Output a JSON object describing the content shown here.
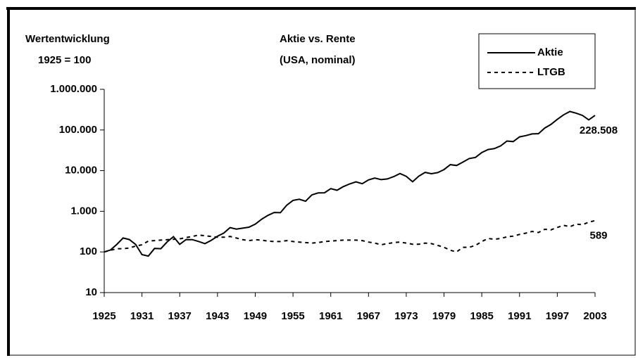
{
  "chart_data": {
    "type": "line",
    "title": "Aktie vs. Rente",
    "subtitle": "(USA, nominal)",
    "y_label": "Wertentwicklung",
    "y_label_note": "1925 = 100",
    "log_scale": true,
    "legend": "top-right",
    "x": [
      1925,
      1926,
      1927,
      1928,
      1929,
      1930,
      1931,
      1932,
      1933,
      1934,
      1935,
      1936,
      1937,
      1938,
      1939,
      1940,
      1941,
      1942,
      1943,
      1944,
      1945,
      1946,
      1947,
      1948,
      1949,
      1950,
      1951,
      1952,
      1953,
      1954,
      1955,
      1956,
      1957,
      1958,
      1959,
      1960,
      1961,
      1962,
      1963,
      1964,
      1965,
      1966,
      1967,
      1968,
      1969,
      1970,
      1971,
      1972,
      1973,
      1974,
      1975,
      1976,
      1977,
      1978,
      1979,
      1980,
      1981,
      1982,
      1983,
      1984,
      1985,
      1986,
      1987,
      1988,
      1989,
      1990,
      1991,
      1992,
      1993,
      1994,
      1995,
      1996,
      1997,
      1998,
      1999,
      2000,
      2001,
      2002,
      2003
    ],
    "xlim": [
      1925,
      2003
    ],
    "xticks": [
      1925,
      1931,
      1937,
      1943,
      1949,
      1955,
      1961,
      1967,
      1973,
      1979,
      1985,
      1991,
      1997,
      2003
    ],
    "ylim": [
      10,
      1000000
    ],
    "yticks": [
      10,
      100,
      {
        "value": 1000,
        "label": "1.000"
      },
      {
        "value": 10000,
        "label": "10.000"
      },
      {
        "value": 100000,
        "label": "100.000"
      },
      {
        "value": 1000000,
        "label": "1.000.000"
      }
    ],
    "series": [
      {
        "name": "Aktie",
        "color": "#000000",
        "dash": "solid",
        "values": [
          100,
          112,
          153,
          220,
          202,
          152,
          86,
          79,
          122,
          120,
          177,
          237,
          154,
          202,
          201,
          181,
          160,
          193,
          243,
          291,
          397,
          365,
          385,
          407,
          483,
          636,
          789,
          934,
          924,
          1411,
          1856,
          1978,
          1765,
          2530,
          2833,
          2846,
          3611,
          3296,
          4048,
          4714,
          5301,
          4768,
          5910,
          6564,
          6006,
          6246,
          7140,
          8494,
          7249,
          5331,
          7315,
          9058,
          8407,
          8959,
          10611,
          14051,
          13362,
          16222,
          19874,
          21119,
          27911,
          33067,
          34796,
          40645,
          53445,
          51750,
          67559,
          72741,
          80008,
          81054,
          111392,
          137095,
          182833,
          235089,
          284563,
          258652,
          227913,
          177534,
          228508
        ],
        "value_labels": [
          null,
          null,
          null,
          null,
          null,
          null,
          null,
          null,
          null,
          null,
          null,
          null,
          null,
          null,
          null,
          null,
          null,
          null,
          null,
          null,
          null,
          null,
          null,
          null,
          null,
          null,
          null,
          null,
          null,
          null,
          null,
          null,
          null,
          null,
          null,
          null,
          null,
          null,
          null,
          null,
          null,
          null,
          null,
          null,
          null,
          null,
          null,
          null,
          null,
          null,
          null,
          null,
          null,
          null,
          null,
          null,
          null,
          null,
          null,
          null,
          null,
          null,
          null,
          null,
          null,
          null,
          null,
          null,
          null,
          null,
          null,
          null,
          null,
          null,
          null,
          null,
          null,
          null,
          "228.508"
        ]
      },
      {
        "name": "LTGB",
        "color": "#000000",
        "dash": "dashed",
        "values": [
          100,
          110,
          120,
          120,
          125,
          140,
          150,
          185,
          190,
          195,
          200,
          205,
          210,
          225,
          240,
          260,
          250,
          240,
          230,
          230,
          240,
          220,
          200,
          190,
          200,
          195,
          185,
          180,
          180,
          190,
          180,
          175,
          170,
          165,
          170,
          180,
          185,
          190,
          195,
          195,
          195,
          190,
          175,
          165,
          150,
          160,
          170,
          175,
          165,
          155,
          155,
          165,
          160,
          145,
          130,
          110,
          100,
          130,
          130,
          145,
          180,
          215,
          205,
          215,
          235,
          245,
          270,
          290,
          320,
          300,
          360,
          350,
          400,
          450,
          420,
          480,
          470,
          540,
          589
        ],
        "value_labels": [
          null,
          null,
          null,
          null,
          null,
          null,
          null,
          null,
          null,
          null,
          null,
          null,
          null,
          null,
          null,
          null,
          null,
          null,
          null,
          null,
          null,
          null,
          null,
          null,
          null,
          null,
          null,
          null,
          null,
          null,
          null,
          null,
          null,
          null,
          null,
          null,
          null,
          null,
          null,
          null,
          null,
          null,
          null,
          null,
          null,
          null,
          null,
          null,
          null,
          null,
          null,
          null,
          null,
          null,
          null,
          null,
          null,
          null,
          null,
          null,
          null,
          null,
          null,
          null,
          null,
          null,
          null,
          null,
          null,
          null,
          null,
          null,
          null,
          null,
          null,
          null,
          null,
          null,
          "589"
        ]
      }
    ]
  }
}
